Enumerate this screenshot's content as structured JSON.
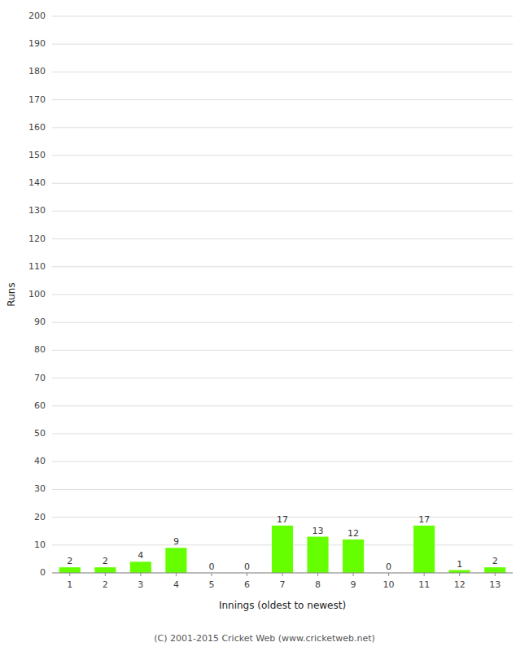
{
  "chart_data": {
    "type": "bar",
    "xlabel": "Innings (oldest to newest)",
    "ylabel": "Runs",
    "categories": [
      1,
      2,
      3,
      4,
      5,
      6,
      7,
      8,
      9,
      10,
      11,
      12,
      13
    ],
    "values": [
      2,
      2,
      4,
      9,
      0,
      0,
      17,
      13,
      12,
      0,
      17,
      1,
      2
    ],
    "color": "#66ff00",
    "ylim": [
      0,
      200
    ],
    "yticks": [
      0,
      10,
      20,
      30,
      40,
      50,
      60,
      70,
      80,
      90,
      100,
      110,
      120,
      130,
      140,
      150,
      160,
      170,
      180,
      190,
      200
    ],
    "grid": true,
    "data_labels": true,
    "footer": "(C) 2001-2015 Cricket Web (www.cricketweb.net)"
  }
}
